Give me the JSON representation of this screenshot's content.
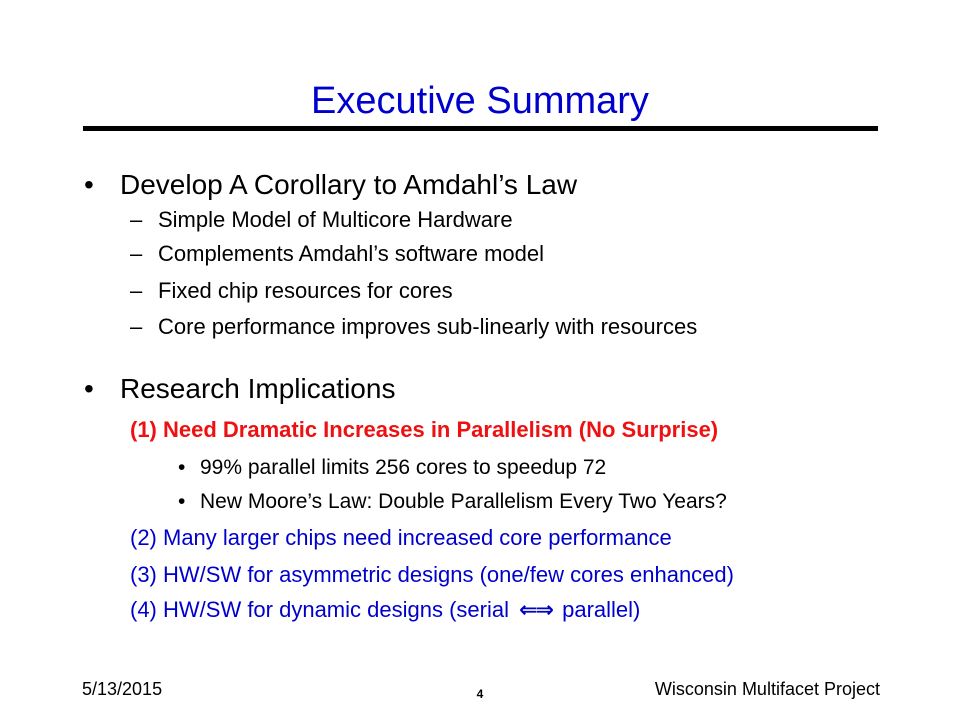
{
  "slide": {
    "title": "Executive Summary",
    "sections": [
      {
        "bullet": "•",
        "heading": "Develop A Corollary to Amdahl’s Law",
        "items": [
          {
            "dash": "–",
            "text": "Simple Model of Multicore Hardware"
          },
          {
            "dash": "–",
            "text": "Complements Amdahl’s software model"
          },
          {
            "dash": "–",
            "text": "Fixed chip resources for cores"
          },
          {
            "dash": "–",
            "text": "Core performance improves sub-linearly with resources"
          }
        ]
      },
      {
        "bullet": "•",
        "heading": "Research Implications",
        "implication_1": "(1) Need Dramatic Increases in Parallelism (No Surprise)",
        "sub_items": [
          {
            "bullet": "•",
            "text": "99% parallel limits 256 cores to speedup 72"
          },
          {
            "bullet": "•",
            "text": "New Moore’s Law: Double Parallelism Every Two Years?"
          }
        ],
        "implication_2": "(2) Many larger chips need increased core performance",
        "implication_3": "(3) HW/SW for asymmetric designs (one/few cores enhanced)",
        "implication_4_prefix": "(4) HW/SW for dynamic designs (serial",
        "implication_4_arrows": "⇐⇒",
        "implication_4_suffix": "parallel)"
      }
    ],
    "footer": {
      "date": "5/13/2015",
      "page_number": "4",
      "project": "Wisconsin Multifacet Project"
    },
    "colors": {
      "title": "#0000cc",
      "highlight_red": "#ee1111",
      "implication_blue": "#0000cc"
    }
  }
}
